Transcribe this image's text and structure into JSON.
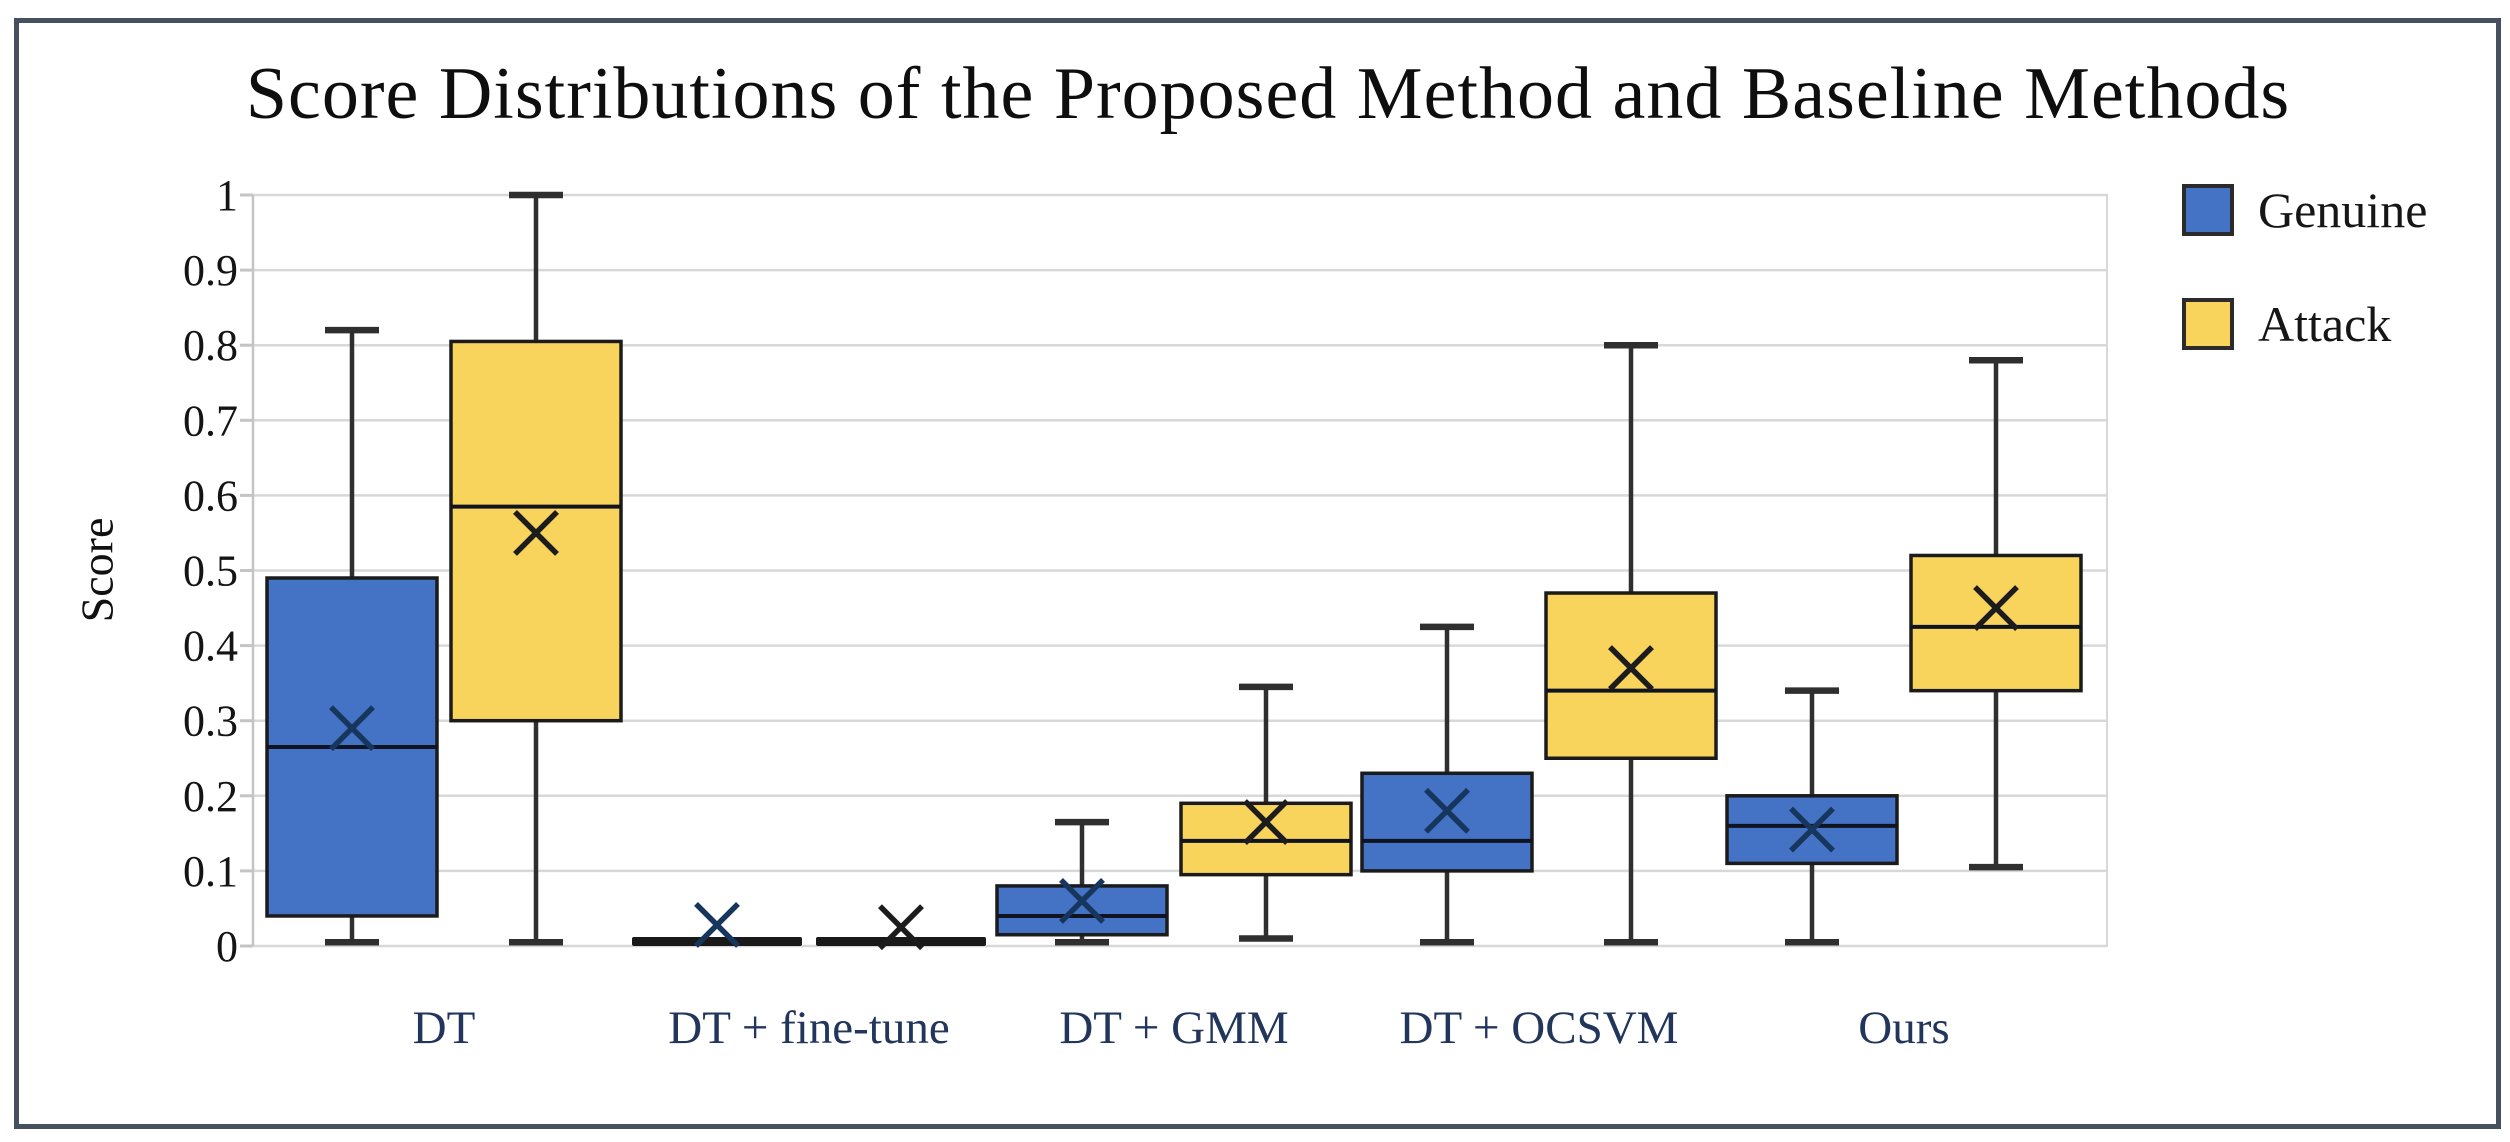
{
  "figure": {
    "title": "Score Distributions of the Proposed Method and Baseline Methods",
    "y_axis_label": "Score"
  },
  "legend": {
    "position": "top-right",
    "items": [
      {
        "label": "Genuine",
        "color": "#4472c4"
      },
      {
        "label": "Attack",
        "color": "#f9d45c"
      }
    ]
  },
  "colors": {
    "genuine_fill": "#4472c4",
    "attack_fill": "#f9d45c",
    "box_stroke": "#1b1b1b",
    "median_line": "#0f1420",
    "whisker": "#2f2f2f",
    "grid": "#d8d8d8",
    "axis_tick": "#c4c4c4",
    "category_label": "#22365c",
    "collapsed_box": "#191919",
    "mean_marker_genuine": "#17365d",
    "mean_marker_attack": "#1c1c1c",
    "figure_border": "#46505e",
    "title_text": "#0e0e0e"
  },
  "chart_data": {
    "type": "boxplot",
    "title": "Score Distributions of the Proposed Method and Baseline Methods",
    "xlabel": "",
    "ylabel": "Score",
    "ylim": [
      0,
      1
    ],
    "grid": true,
    "legend_position": "top-right",
    "ytick_values": [
      1,
      0.9,
      0.8,
      0.7,
      0.6,
      0.5,
      0.4,
      0.3,
      0.2,
      0.1,
      0
    ],
    "ytick_labels": [
      "1",
      "0.9",
      "0.8",
      "0.7",
      "0.6",
      "0.5",
      "0.4",
      "0.3",
      "0.2",
      "0.1",
      "0"
    ],
    "categories": [
      "DT",
      "DT + fine-tune",
      "DT + GMM",
      "DT + OCSVM",
      "Ours"
    ],
    "series": [
      {
        "name": "Genuine",
        "fill": "#4472c4",
        "mean_marker_color": "#17365d",
        "boxes": [
          {
            "min": 0.005,
            "q1": 0.04,
            "median": 0.265,
            "mean": 0.29,
            "q3": 0.49,
            "max": 0.82
          },
          {
            "min": 0.0,
            "q1": 0.002,
            "median": 0.006,
            "mean": 0.028,
            "q3": 0.01,
            "max": 0.012,
            "collapsed": true
          },
          {
            "min": 0.005,
            "q1": 0.015,
            "median": 0.04,
            "mean": 0.06,
            "q3": 0.08,
            "max": 0.165
          },
          {
            "min": 0.005,
            "q1": 0.1,
            "median": 0.14,
            "mean": 0.18,
            "q3": 0.23,
            "max": 0.425
          },
          {
            "min": 0.005,
            "q1": 0.11,
            "median": 0.16,
            "mean": 0.155,
            "q3": 0.2,
            "max": 0.34
          }
        ]
      },
      {
        "name": "Attack",
        "fill": "#f9d45c",
        "mean_marker_color": "#1c1c1c",
        "boxes": [
          {
            "min": 0.005,
            "q1": 0.3,
            "median": 0.585,
            "mean": 0.55,
            "q3": 0.805,
            "max": 1.0
          },
          {
            "min": 0.0,
            "q1": 0.002,
            "median": 0.006,
            "mean": 0.025,
            "q3": 0.01,
            "max": 0.012,
            "collapsed": true
          },
          {
            "min": 0.01,
            "q1": 0.095,
            "median": 0.14,
            "mean": 0.165,
            "q3": 0.19,
            "max": 0.345
          },
          {
            "min": 0.005,
            "q1": 0.25,
            "median": 0.34,
            "mean": 0.37,
            "q3": 0.47,
            "max": 0.8
          },
          {
            "min": 0.105,
            "q1": 0.34,
            "median": 0.425,
            "mean": 0.45,
            "q3": 0.52,
            "max": 0.78
          }
        ]
      }
    ]
  }
}
